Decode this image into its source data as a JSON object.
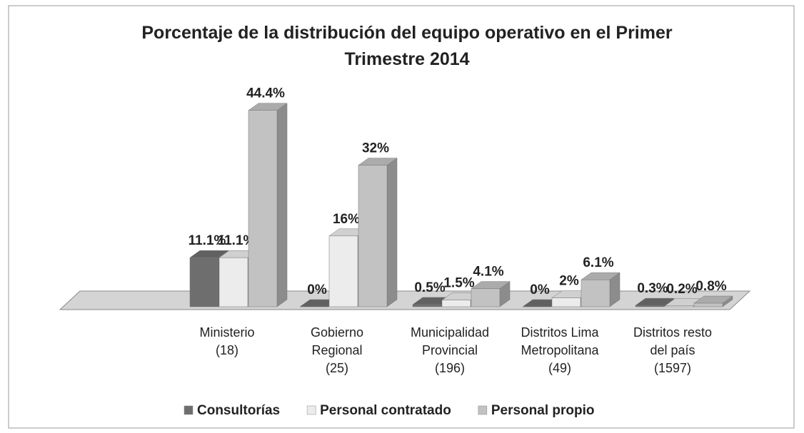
{
  "chart_data": {
    "type": "bar3d",
    "title": "Porcentaje de la distribución del equipo operativo en el Primer Trimestre 2014",
    "categories": [
      "Ministerio\n(18)",
      "Gobierno\nRegional\n(25)",
      "Municipalidad\nProvincial\n(196)",
      "Distritos Lima\nMetropolitana\n(49)",
      "Distritos resto\ndel país\n(1597)"
    ],
    "series": [
      {
        "name": "Consultorías",
        "color": "#6e6e6e",
        "values": [
          11.1,
          0,
          0.5,
          0,
          0.3
        ],
        "value_labels": [
          "11.1%",
          "0%",
          "0.5%",
          "0%",
          "0.3%"
        ]
      },
      {
        "name": "Personal contratado",
        "color": "#ececec",
        "values": [
          11.1,
          16,
          1.5,
          2,
          0.2
        ],
        "value_labels": [
          "11.1%",
          "16%",
          "1.5%",
          "2%",
          "0.2%"
        ]
      },
      {
        "name": "Personal propio",
        "color": "#c2c2c2",
        "values": [
          44.4,
          32,
          4.1,
          6.1,
          0.8
        ],
        "value_labels": [
          "44.4%",
          "32%",
          "4.1%",
          "6.1%",
          "0.8%"
        ]
      }
    ],
    "legend": "bottom"
  }
}
